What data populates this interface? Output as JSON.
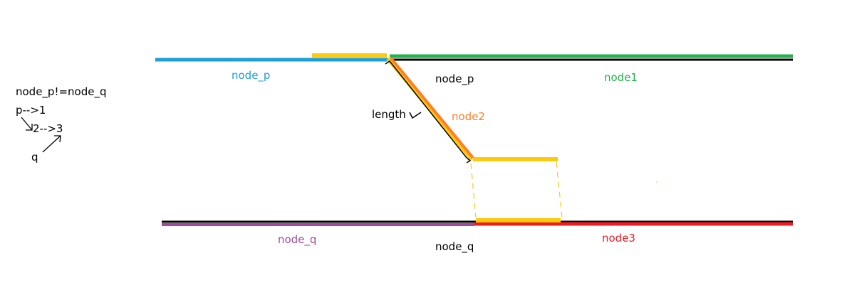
{
  "notes": {
    "condition": "node_p!=node_q",
    "line1": "p-->1",
    "line2": "2-->3",
    "line3": "q"
  },
  "labels": {
    "node_p_left": "node_p",
    "node_p_mid": "node_p",
    "node1": "node1",
    "length": "length",
    "node2": "node2",
    "node_q_left": "node_q",
    "node_q_mid": "node_q",
    "node3": "node3"
  },
  "colors": {
    "node_p": "#1a9fd9",
    "node1": "#22b14c",
    "node2": "#ff7f27",
    "node_q": "#a349a4",
    "node3": "#ed1c24",
    "highlight": "#ffc90e",
    "black": "#000000"
  }
}
